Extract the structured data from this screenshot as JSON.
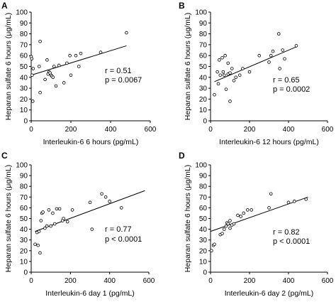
{
  "chart_data": [
    {
      "panel": "A",
      "type": "scatter",
      "xlabel": "Interleukin-6 6 hours (pg/mL)",
      "ylabel": "Heparan sulfate 6 hours (μg/mL)",
      "xlim": [
        0,
        600
      ],
      "ylim": [
        0,
        100
      ],
      "xticks": [
        "0",
        "200",
        "400",
        "600"
      ],
      "yticks": [
        "0",
        "10",
        "20",
        "30",
        "40",
        "50",
        "60",
        "70",
        "80",
        "90",
        "100"
      ],
      "stats": [
        "r = 0.51",
        "p = 0.0067"
      ],
      "fit": {
        "x": [
          0,
          480
        ],
        "y": [
          42,
          69
        ]
      },
      "points": [
        [
          0,
          59
        ],
        [
          3,
          57
        ],
        [
          5,
          42
        ],
        [
          8,
          18
        ],
        [
          10,
          48
        ],
        [
          40,
          50
        ],
        [
          45,
          73
        ],
        [
          45,
          26
        ],
        [
          70,
          38
        ],
        [
          80,
          56
        ],
        [
          85,
          43
        ],
        [
          90,
          45
        ],
        [
          95,
          44
        ],
        [
          100,
          42
        ],
        [
          105,
          41
        ],
        [
          110,
          40
        ],
        [
          115,
          50
        ],
        [
          125,
          32
        ],
        [
          140,
          51
        ],
        [
          165,
          35
        ],
        [
          180,
          53
        ],
        [
          195,
          60
        ],
        [
          200,
          42
        ],
        [
          225,
          60
        ],
        [
          240,
          50
        ],
        [
          250,
          62
        ],
        [
          350,
          63
        ],
        [
          480,
          81
        ]
      ]
    },
    {
      "panel": "B",
      "type": "scatter",
      "xlabel": "Interleukin-6 12 hours (pg/mL)",
      "ylabel": "Heparan sulfate 6 hours (μg/mL)",
      "xlim": [
        0,
        600
      ],
      "ylim": [
        0,
        100
      ],
      "xticks": [
        "0",
        "200",
        "400",
        "600"
      ],
      "yticks": [
        "0",
        "10",
        "20",
        "30",
        "40",
        "50",
        "60",
        "70",
        "80",
        "90",
        "100"
      ],
      "stats": [
        "r = 0.65",
        "p = 0.0002"
      ],
      "fit": {
        "x": [
          20,
          440
        ],
        "y": [
          36,
          68
        ]
      },
      "points": [
        [
          20,
          24
        ],
        [
          35,
          45
        ],
        [
          40,
          34
        ],
        [
          45,
          56
        ],
        [
          50,
          42
        ],
        [
          60,
          58
        ],
        [
          65,
          45
        ],
        [
          70,
          42
        ],
        [
          75,
          60
        ],
        [
          80,
          29
        ],
        [
          90,
          43
        ],
        [
          90,
          53
        ],
        [
          100,
          44
        ],
        [
          100,
          18
        ],
        [
          110,
          48
        ],
        [
          120,
          37
        ],
        [
          130,
          40
        ],
        [
          150,
          42
        ],
        [
          165,
          48
        ],
        [
          200,
          45
        ],
        [
          250,
          60
        ],
        [
          300,
          54
        ],
        [
          310,
          60
        ],
        [
          320,
          64
        ],
        [
          350,
          80
        ],
        [
          355,
          48
        ],
        [
          370,
          65
        ],
        [
          380,
          57
        ],
        [
          440,
          69
        ]
      ]
    },
    {
      "panel": "C",
      "type": "scatter",
      "xlabel": "Interleukin-6 day 1 (pg/mL)",
      "ylabel": "Heparan sulfate 6 hours (μg/mL)",
      "xlim": [
        0,
        600
      ],
      "ylim": [
        0,
        100
      ],
      "xticks": [
        "0",
        "200",
        "400",
        "600"
      ],
      "yticks": [
        "0",
        "10",
        "20",
        "30",
        "40",
        "50",
        "60",
        "70",
        "80",
        "90",
        "100"
      ],
      "stats": [
        "r = 0.77",
        "p < 0.0001"
      ],
      "fit": {
        "x": [
          20,
          580
        ],
        "y": [
          38,
          76
        ]
      },
      "points": [
        [
          20,
          26
        ],
        [
          30,
          37
        ],
        [
          35,
          25
        ],
        [
          45,
          18
        ],
        [
          40,
          38
        ],
        [
          50,
          48
        ],
        [
          55,
          55
        ],
        [
          60,
          56
        ],
        [
          70,
          41
        ],
        [
          80,
          43
        ],
        [
          90,
          58
        ],
        [
          100,
          43
        ],
        [
          110,
          55
        ],
        [
          120,
          45
        ],
        [
          130,
          59
        ],
        [
          145,
          59
        ],
        [
          160,
          48
        ],
        [
          165,
          50
        ],
        [
          185,
          47
        ],
        [
          210,
          58
        ],
        [
          300,
          65
        ],
        [
          310,
          40
        ],
        [
          360,
          73
        ],
        [
          380,
          70
        ],
        [
          400,
          66
        ],
        [
          460,
          60
        ]
      ]
    },
    {
      "panel": "D",
      "type": "scatter",
      "xlabel": "Interleukin-6 day 2 (pg/mL)",
      "ylabel": "Heparan sulfate 6 hours (μg/mL)",
      "xlim": [
        0,
        600
      ],
      "ylim": [
        0,
        100
      ],
      "xticks": [
        "0",
        "200",
        "400",
        "600"
      ],
      "yticks": [
        "0",
        "10",
        "20",
        "30",
        "40",
        "50",
        "60",
        "70",
        "80",
        "90",
        "100"
      ],
      "stats": [
        "r = 0.82",
        "p < 0.0001"
      ],
      "fit": {
        "x": [
          0,
          500
        ],
        "y": [
          38,
          70
        ]
      },
      "points": [
        [
          5,
          20
        ],
        [
          15,
          25
        ],
        [
          20,
          26
        ],
        [
          50,
          35
        ],
        [
          60,
          36
        ],
        [
          70,
          40
        ],
        [
          80,
          43
        ],
        [
          85,
          46
        ],
        [
          90,
          45
        ],
        [
          100,
          48
        ],
        [
          100,
          41
        ],
        [
          110,
          44
        ],
        [
          120,
          45
        ],
        [
          140,
          53
        ],
        [
          155,
          52
        ],
        [
          170,
          55
        ],
        [
          190,
          58
        ],
        [
          210,
          58
        ],
        [
          300,
          60
        ],
        [
          310,
          73
        ],
        [
          400,
          65
        ],
        [
          430,
          66
        ],
        [
          490,
          68
        ]
      ]
    }
  ]
}
